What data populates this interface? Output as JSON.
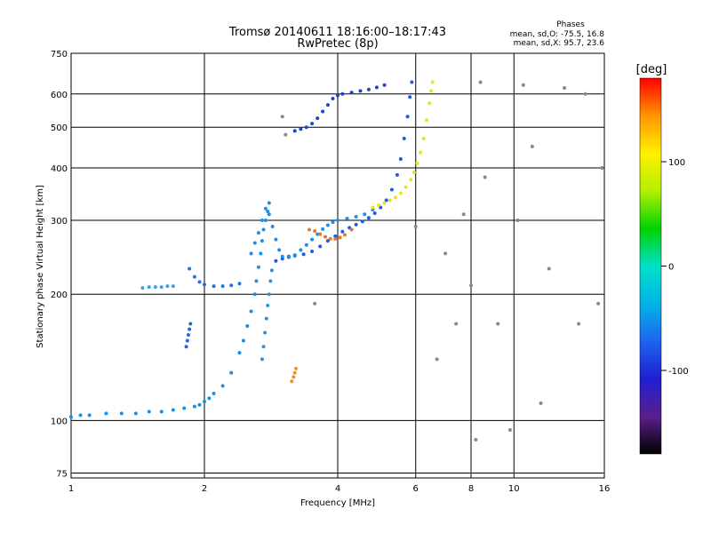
{
  "chart_data": {
    "type": "scatter",
    "title": "Tromsø 20140611 18:16:00–18:17:43",
    "subtitle": "RwPretec (8p)",
    "xlabel": "Frequency [MHz]",
    "ylabel": "Stationary phase Virtual Height [km]",
    "x_scale": "log",
    "y_scale": "log",
    "xlim": [
      1,
      16
    ],
    "ylim": [
      73,
      750
    ],
    "x_ticks": [
      1,
      2,
      4,
      6,
      8,
      10,
      16
    ],
    "y_ticks": [
      75,
      100,
      200,
      300,
      400,
      500,
      600,
      750
    ],
    "grid": true,
    "phase_info": {
      "title": "Phases",
      "line_o": "mean, sd,O: -75.5, 16.8",
      "line_x": "mean, sd,X:  95.7, 23.6"
    },
    "colorbar": {
      "label": "[deg]",
      "range": [
        -180,
        180
      ],
      "ticks": [
        100,
        0,
        -100
      ],
      "colors": [
        "#000000",
        "#5a1f8c",
        "#1f1fd0",
        "#1e64f0",
        "#00b4e6",
        "#00e0c8",
        "#00d200",
        "#b4f000",
        "#fff000",
        "#ff9600",
        "#ff0000"
      ]
    },
    "series": [
      {
        "color": "#1a8fe6",
        "phase_deg": -40,
        "x": [
          1.0,
          1.05,
          1.1,
          1.2,
          1.3,
          1.4,
          1.5,
          1.6,
          1.7,
          1.8,
          1.9,
          1.95,
          2.0,
          2.05,
          2.1,
          2.2,
          2.3,
          2.4,
          2.45,
          2.5,
          2.55,
          2.6,
          2.62,
          2.65,
          2.68,
          2.7,
          2.72,
          2.75,
          2.78,
          2.8
        ],
        "y": [
          102,
          103,
          103,
          104,
          104,
          104,
          105,
          105,
          106,
          107,
          108,
          109,
          111,
          113,
          116,
          121,
          130,
          145,
          155,
          168,
          182,
          200,
          215,
          232,
          250,
          268,
          285,
          300,
          315,
          330
        ]
      },
      {
        "color": "#1e73e6",
        "phase_deg": -75,
        "x": [
          1.85,
          1.9,
          1.95,
          2.0,
          2.1,
          2.2,
          2.3,
          2.4
        ],
        "y": [
          230,
          220,
          214,
          211,
          209,
          209,
          210,
          212
        ]
      },
      {
        "color": "#1e5ae6",
        "phase_deg": -85,
        "x": [
          2.9,
          3.0,
          3.1,
          3.2,
          3.35,
          3.5,
          3.65,
          3.8,
          3.95,
          4.1,
          4.25,
          4.4,
          4.55,
          4.7,
          4.85,
          5.0,
          5.15,
          5.3,
          5.45,
          5.55,
          5.65,
          5.75,
          5.82,
          5.88
        ],
        "y": [
          240,
          243,
          246,
          247,
          249,
          253,
          260,
          268,
          275,
          282,
          288,
          293,
          298,
          304,
          312,
          322,
          335,
          355,
          385,
          420,
          470,
          530,
          590,
          640
        ]
      },
      {
        "color": "#1e8cf0",
        "phase_deg": -60,
        "x": [
          2.55,
          2.6,
          2.65,
          2.7,
          2.75,
          2.8,
          2.85,
          2.9,
          2.95,
          3.0,
          3.1,
          3.2,
          3.3,
          3.4,
          3.5,
          3.6,
          3.7,
          3.8,
          3.9,
          4.0,
          4.2,
          4.4,
          4.6,
          4.8
        ],
        "y": [
          250,
          265,
          280,
          300,
          320,
          310,
          290,
          270,
          255,
          246,
          245,
          248,
          255,
          262,
          270,
          278,
          286,
          292,
          297,
          300,
          303,
          306,
          310,
          318
        ]
      },
      {
        "color": "#e67828",
        "phase_deg": 140,
        "x": [
          3.45,
          3.55,
          3.65,
          3.75,
          3.85,
          3.95,
          4.05,
          4.15,
          4.3
        ],
        "y": [
          285,
          283,
          278,
          274,
          271,
          271,
          273,
          277,
          285
        ]
      },
      {
        "color": "#e6e61e",
        "phase_deg": 100,
        "x": [
          4.8,
          4.95,
          5.1,
          5.25,
          5.4,
          5.55,
          5.7,
          5.85,
          5.95,
          6.05,
          6.15,
          6.25,
          6.35,
          6.45,
          6.5,
          6.55
        ],
        "y": [
          322,
          326,
          330,
          335,
          340,
          348,
          360,
          375,
          390,
          410,
          435,
          470,
          520,
          570,
          610,
          640
        ]
      },
      {
        "color": "#1e46c8",
        "phase_deg": -110,
        "x": [
          3.2,
          3.3,
          3.4,
          3.5,
          3.6,
          3.7,
          3.8,
          3.9,
          4.0,
          4.1,
          4.3,
          4.5,
          4.7,
          4.9,
          5.1
        ],
        "y": [
          490,
          495,
          500,
          510,
          525,
          545,
          565,
          585,
          595,
          600,
          605,
          610,
          615,
          622,
          630
        ]
      },
      {
        "color": "#2896dc",
        "phase_deg": -45,
        "x": [
          2.7,
          2.72,
          2.74,
          2.76,
          2.78,
          2.8,
          2.82,
          2.84
        ],
        "y": [
          140,
          150,
          162,
          175,
          188,
          200,
          215,
          228
        ]
      },
      {
        "color": "#3ca0e6",
        "phase_deg": -35,
        "x": [
          1.45,
          1.5,
          1.55,
          1.6,
          1.65,
          1.7
        ],
        "y": [
          207,
          208,
          208,
          208,
          209,
          209
        ]
      },
      {
        "color": "#2864dc",
        "phase_deg": -90,
        "x": [
          1.82,
          1.83,
          1.84,
          1.85,
          1.86
        ],
        "y": [
          150,
          155,
          160,
          165,
          170
        ]
      },
      {
        "color": "#e69628",
        "phase_deg": 130,
        "x": [
          3.15,
          3.18,
          3.2,
          3.22
        ],
        "y": [
          124,
          127,
          130,
          133
        ]
      },
      {
        "color": "#888888",
        "phase_deg": null,
        "x": [
          3.0,
          3.05,
          3.55,
          6.0,
          6.7,
          7.0,
          7.4,
          7.7,
          8.0,
          8.2,
          8.4,
          8.6,
          9.2,
          9.8,
          10.2,
          10.5,
          11.0,
          11.5,
          12.0,
          13.0,
          14.0,
          14.5,
          15.5,
          15.8
        ],
        "y": [
          530,
          480,
          190,
          290,
          140,
          250,
          170,
          310,
          210,
          90,
          640,
          380,
          170,
          95,
          300,
          630,
          450,
          110,
          230,
          620,
          170,
          600,
          190,
          400
        ]
      }
    ]
  }
}
